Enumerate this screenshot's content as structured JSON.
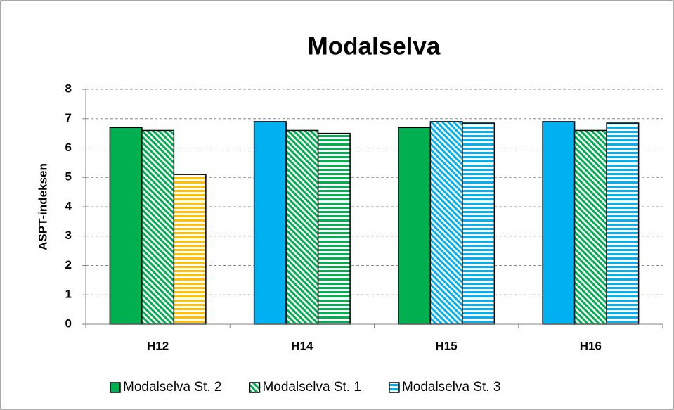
{
  "chart_data": {
    "type": "bar",
    "title": "Modalselva",
    "y_label": "ASPT-indeksen",
    "categories": [
      "H12",
      "H14",
      "H15",
      "H16"
    ],
    "series": [
      {
        "name": "Modalselva St. 2",
        "color": "#00b050",
        "pattern": "solid",
        "values": [
          6.7,
          6.9,
          6.7,
          6.9
        ],
        "bar_colors": [
          "#00b050",
          "#00b0f0",
          "#00b050",
          "#00b0f0"
        ]
      },
      {
        "name": "Modalselva St. 1",
        "color": "#00b050",
        "pattern": "diagonal",
        "values": [
          6.6,
          6.6,
          6.9,
          6.6
        ],
        "bar_colors": [
          "#00b050",
          "#00b050",
          "#00b0f0",
          "#00b050"
        ]
      },
      {
        "name": "Modalselva St. 3",
        "color": "#00b0f0",
        "pattern": "horizontal",
        "values": [
          5.1,
          6.5,
          6.85,
          6.85
        ],
        "bar_colors": [
          "#ffc000",
          "#00b050",
          "#00b0f0",
          "#00b0f0"
        ]
      }
    ],
    "ylim": [
      0,
      8
    ],
    "yticks": [
      0,
      1,
      2,
      3,
      4,
      5,
      6,
      7,
      8
    ],
    "grid": true,
    "legend": "bottom"
  }
}
